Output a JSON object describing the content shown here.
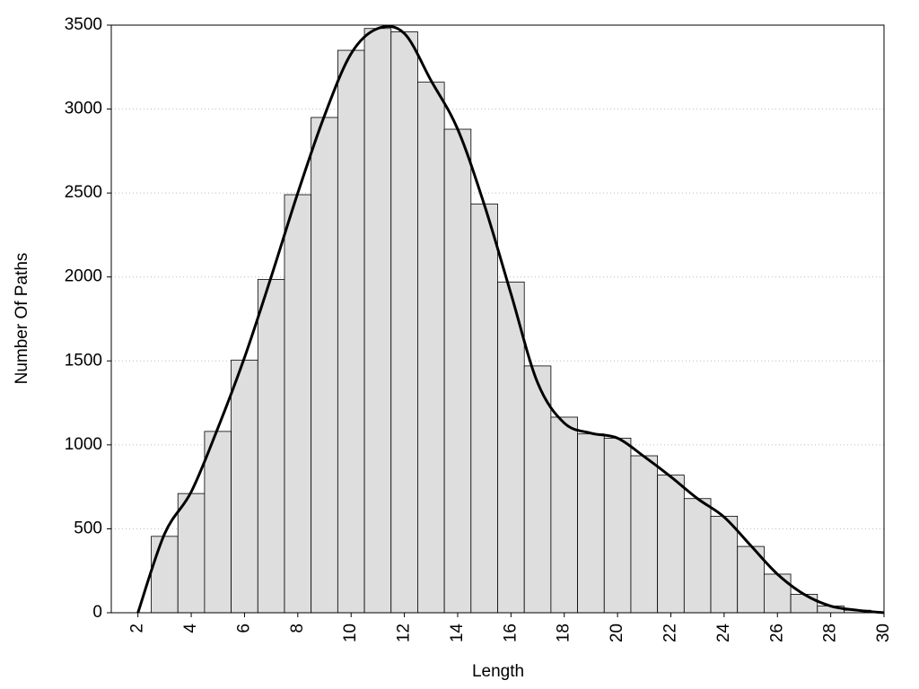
{
  "chart_data": {
    "type": "histogram",
    "xlabel": "Length",
    "ylabel": "Number Of Paths",
    "bins": [
      2.5,
      3.5,
      4.5,
      5.5,
      6.5,
      7.5,
      8.5,
      9.5,
      10.5,
      11.5,
      12.5,
      13.5,
      14.5,
      15.5,
      16.5,
      17.5,
      18.5,
      19.5,
      20.5,
      21.5,
      22.5,
      23.5,
      24.5,
      25.5,
      26.5,
      27.5,
      28.5,
      29.5
    ],
    "values": [
      455,
      710,
      1080,
      1505,
      1985,
      2490,
      2950,
      3350,
      3480,
      3460,
      3160,
      2880,
      2435,
      1970,
      1470,
      1165,
      1065,
      1040,
      935,
      820,
      680,
      575,
      395,
      230,
      110,
      40,
      15
    ],
    "color": "#dedede",
    "curve": {
      "x": [
        2,
        3,
        4,
        5,
        6,
        7,
        8,
        9,
        10,
        11,
        12,
        13,
        14,
        15,
        16,
        17,
        18,
        19,
        20,
        21,
        22,
        23,
        24,
        25,
        26,
        27,
        28,
        29,
        30
      ],
      "values": [
        0,
        470,
        720,
        1100,
        1520,
        2000,
        2500,
        2960,
        3330,
        3480,
        3450,
        3170,
        2880,
        2430,
        1900,
        1370,
        1130,
        1070,
        1040,
        930,
        810,
        680,
        570,
        400,
        230,
        110,
        40,
        15,
        0
      ],
      "color": "#000000"
    },
    "xlim": [
      1,
      30
    ],
    "ylim": [
      0,
      3500
    ],
    "xticks": [
      2,
      4,
      6,
      8,
      10,
      12,
      14,
      16,
      18,
      20,
      22,
      24,
      26,
      28,
      30
    ],
    "yticks": [
      0,
      500,
      1000,
      1500,
      2000,
      2500,
      3000,
      3500
    ],
    "grid": true
  }
}
